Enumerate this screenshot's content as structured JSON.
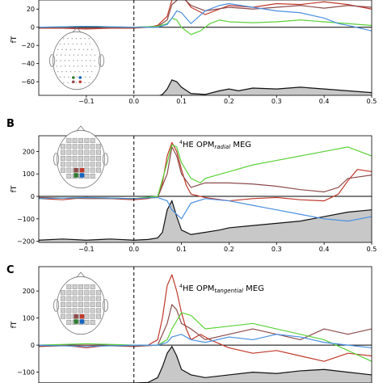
{
  "colors": {
    "red": "#c0392b",
    "brown": "#8e4b4b",
    "green": "#5cd13a",
    "blue": "#4a90e2",
    "black": "#111111",
    "fill": "#c8c8c8"
  },
  "panels": [
    {
      "label": "",
      "title_sup": "",
      "title_main": "",
      "title_sub": "",
      "title_end": "",
      "ylabel": "fT",
      "ylim": [
        -75,
        30
      ],
      "yticks": [
        -60,
        -40,
        -20,
        0,
        20
      ],
      "ytick_labels": [
        "−60",
        "−40",
        "−20",
        "0",
        "20"
      ],
      "xticks_labels": [
        "−0.1",
        "0.0",
        "0.1",
        "0.2",
        "0.3",
        "0.4",
        "0.5"
      ]
    },
    {
      "label": "B",
      "title_sup": "4",
      "title_main": "HE OPM",
      "title_sub": "radial",
      "title_end": " MEG",
      "ylabel": "fT",
      "ylim": [
        -205,
        270
      ],
      "yticks": [
        -200,
        -100,
        0,
        100,
        200
      ],
      "ytick_labels": [
        "−200",
        "−100",
        "0",
        "100",
        "200"
      ],
      "xticks_labels": [
        "−0.1",
        "0.0",
        "0.1",
        "0.2",
        "0.3",
        "0.4",
        "0.5"
      ]
    },
    {
      "label": "C",
      "title_sup": "4",
      "title_main": "HE OPM",
      "title_sub": "tangential",
      "title_end": " MEG",
      "ylabel": "fT",
      "ylim": [
        -140,
        290
      ],
      "yticks": [
        -100,
        0,
        100,
        200
      ],
      "ytick_labels": [
        "−100",
        "0",
        "100",
        "200"
      ],
      "xticks_labels": []
    }
  ],
  "chart_data": [
    {
      "type": "line",
      "xlim": [
        -0.2,
        0.5
      ],
      "xticks": [
        -0.1,
        0.0,
        0.1,
        0.2,
        0.3,
        0.4,
        0.5
      ],
      "ylim": [
        -75,
        30
      ],
      "grid": false,
      "vline_x": 0.0,
      "series": [
        {
          "color": "red",
          "x": [
            -0.2,
            -0.15,
            -0.1,
            -0.05,
            0.0,
            0.03,
            0.05,
            0.07,
            0.08,
            0.09,
            0.1,
            0.12,
            0.15,
            0.2,
            0.25,
            0.3,
            0.35,
            0.4,
            0.45,
            0.5
          ],
          "y": [
            -1,
            -1,
            -2,
            -1,
            -1,
            0,
            2,
            12,
            30,
            40,
            36,
            22,
            14,
            24,
            22,
            26,
            25,
            28,
            25,
            20
          ]
        },
        {
          "color": "brown",
          "x": [
            -0.2,
            -0.1,
            0.0,
            0.05,
            0.07,
            0.08,
            0.1,
            0.12,
            0.15,
            0.2,
            0.25,
            0.3,
            0.35,
            0.4,
            0.45,
            0.5
          ],
          "y": [
            0,
            -1,
            0,
            1,
            8,
            25,
            34,
            24,
            18,
            22,
            20,
            22,
            24,
            21,
            24,
            22
          ]
        },
        {
          "color": "green",
          "x": [
            -0.2,
            -0.1,
            0.0,
            0.05,
            0.07,
            0.08,
            0.09,
            0.1,
            0.12,
            0.14,
            0.16,
            0.18,
            0.2,
            0.25,
            0.3,
            0.35,
            0.4,
            0.45,
            0.5
          ],
          "y": [
            0,
            1,
            0,
            1,
            4,
            10,
            8,
            0,
            -8,
            -4,
            4,
            8,
            6,
            5,
            6,
            8,
            6,
            4,
            2
          ]
        },
        {
          "color": "blue",
          "x": [
            -0.2,
            -0.1,
            0.0,
            0.05,
            0.07,
            0.08,
            0.09,
            0.1,
            0.12,
            0.15,
            0.18,
            0.2,
            0.25,
            0.3,
            0.35,
            0.4,
            0.43,
            0.45,
            0.5
          ],
          "y": [
            0,
            1,
            0,
            0,
            3,
            10,
            18,
            16,
            4,
            18,
            24,
            26,
            22,
            18,
            16,
            10,
            4,
            2,
            -4
          ]
        }
      ],
      "area": {
        "color": "black",
        "x": [
          -0.2,
          -0.15,
          -0.1,
          -0.05,
          0.0,
          0.03,
          0.05,
          0.06,
          0.07,
          0.08,
          0.09,
          0.1,
          0.12,
          0.15,
          0.18,
          0.2,
          0.22,
          0.25,
          0.3,
          0.35,
          0.4,
          0.45,
          0.5
        ],
        "y": [
          -77,
          -76,
          -76,
          -77,
          -76,
          -76,
          -76,
          -74,
          -68,
          -58,
          -60,
          -66,
          -73,
          -74,
          -70,
          -68,
          -70,
          -67,
          -68,
          -66,
          -68,
          -70,
          -72
        ]
      }
    },
    {
      "type": "line",
      "xlim": [
        -0.2,
        0.5
      ],
      "xticks": [
        -0.1,
        0.0,
        0.1,
        0.2,
        0.3,
        0.4,
        0.5
      ],
      "ylim": [
        -205,
        270
      ],
      "grid": false,
      "vline_x": 0.0,
      "series": [
        {
          "color": "red",
          "x": [
            -0.2,
            -0.15,
            -0.1,
            -0.05,
            0.0,
            0.03,
            0.05,
            0.06,
            0.07,
            0.08,
            0.09,
            0.1,
            0.11,
            0.12,
            0.15,
            0.2,
            0.25,
            0.3,
            0.35,
            0.4,
            0.43,
            0.45,
            0.47,
            0.5
          ],
          "y": [
            -10,
            -15,
            -5,
            -10,
            -15,
            -10,
            0,
            60,
            180,
            240,
            200,
            120,
            50,
            10,
            -5,
            -20,
            -10,
            -5,
            -15,
            -20,
            10,
            70,
            120,
            110
          ]
        },
        {
          "color": "brown",
          "x": [
            -0.2,
            -0.1,
            0.0,
            0.05,
            0.07,
            0.08,
            0.09,
            0.1,
            0.12,
            0.15,
            0.2,
            0.25,
            0.3,
            0.35,
            0.4,
            0.43,
            0.45,
            0.5
          ],
          "y": [
            -5,
            -10,
            -10,
            -5,
            100,
            220,
            180,
            100,
            40,
            60,
            60,
            55,
            45,
            30,
            20,
            40,
            80,
            95
          ]
        },
        {
          "color": "green",
          "x": [
            -0.2,
            -0.1,
            0.0,
            0.05,
            0.07,
            0.08,
            0.09,
            0.1,
            0.12,
            0.14,
            0.15,
            0.2,
            0.25,
            0.3,
            0.35,
            0.4,
            0.45,
            0.5
          ],
          "y": [
            -10,
            -5,
            -10,
            0,
            150,
            230,
            220,
            150,
            80,
            60,
            80,
            110,
            140,
            160,
            180,
            200,
            220,
            180
          ]
        },
        {
          "color": "blue",
          "x": [
            -0.2,
            -0.1,
            0.0,
            0.05,
            0.07,
            0.08,
            0.1,
            0.12,
            0.15,
            0.2,
            0.25,
            0.3,
            0.35,
            0.4,
            0.45,
            0.5
          ],
          "y": [
            -10,
            -5,
            -10,
            -5,
            -20,
            -60,
            -100,
            -30,
            -10,
            -20,
            -40,
            -60,
            -80,
            -100,
            -110,
            -90
          ]
        }
      ],
      "area": {
        "color": "black",
        "x": [
          -0.2,
          -0.15,
          -0.1,
          -0.05,
          0.0,
          0.03,
          0.05,
          0.06,
          0.07,
          0.08,
          0.09,
          0.1,
          0.12,
          0.15,
          0.18,
          0.2,
          0.25,
          0.3,
          0.35,
          0.4,
          0.45,
          0.5
        ],
        "y": [
          -195,
          -190,
          -195,
          -190,
          -195,
          -192,
          -185,
          -160,
          -60,
          -20,
          -90,
          -150,
          -170,
          -160,
          -150,
          -140,
          -130,
          -120,
          -110,
          -90,
          -70,
          -60
        ]
      }
    },
    {
      "type": "line",
      "xlim": [
        -0.2,
        0.5
      ],
      "xticks": [],
      "ylim": [
        -140,
        290
      ],
      "grid": false,
      "vline_x": 0.0,
      "series": [
        {
          "color": "red",
          "x": [
            -0.2,
            -0.15,
            -0.1,
            -0.05,
            0.0,
            0.03,
            0.05,
            0.06,
            0.07,
            0.08,
            0.09,
            0.1,
            0.11,
            0.12,
            0.14,
            0.16,
            0.2,
            0.25,
            0.3,
            0.35,
            0.4,
            0.45,
            0.5
          ],
          "y": [
            -5,
            0,
            -10,
            0,
            -5,
            0,
            20,
            100,
            220,
            260,
            200,
            120,
            60,
            20,
            40,
            20,
            -10,
            -30,
            -20,
            -40,
            -60,
            -30,
            -40
          ]
        },
        {
          "color": "brown",
          "x": [
            -0.2,
            -0.1,
            0.0,
            0.05,
            0.07,
            0.08,
            0.09,
            0.1,
            0.12,
            0.15,
            0.2,
            0.25,
            0.3,
            0.35,
            0.4,
            0.45,
            0.5
          ],
          "y": [
            -5,
            0,
            -5,
            0,
            80,
            150,
            130,
            80,
            60,
            20,
            40,
            60,
            40,
            20,
            60,
            40,
            60
          ]
        },
        {
          "color": "green",
          "x": [
            -0.2,
            -0.1,
            0.0,
            0.05,
            0.07,
            0.08,
            0.1,
            0.12,
            0.15,
            0.2,
            0.25,
            0.3,
            0.35,
            0.4,
            0.45,
            0.5
          ],
          "y": [
            0,
            5,
            0,
            0,
            20,
            60,
            120,
            110,
            60,
            70,
            80,
            60,
            40,
            20,
            -20,
            -60
          ]
        },
        {
          "color": "blue",
          "x": [
            -0.2,
            -0.1,
            0.0,
            0.05,
            0.07,
            0.08,
            0.1,
            0.12,
            0.15,
            0.2,
            0.25,
            0.3,
            0.35,
            0.4,
            0.45,
            0.5
          ],
          "y": [
            0,
            -5,
            0,
            0,
            10,
            30,
            40,
            20,
            10,
            30,
            20,
            40,
            30,
            10,
            0,
            -10
          ]
        }
      ],
      "area": {
        "color": "black",
        "x": [
          -0.2,
          -0.15,
          -0.1,
          -0.05,
          0.0,
          0.03,
          0.05,
          0.06,
          0.07,
          0.08,
          0.09,
          0.1,
          0.12,
          0.15,
          0.2,
          0.25,
          0.3,
          0.35,
          0.4,
          0.45,
          0.5
        ],
        "y": [
          -140,
          -140,
          -140,
          -140,
          -140,
          -138,
          -120,
          -80,
          -30,
          -5,
          -40,
          -90,
          -110,
          -120,
          -110,
          -100,
          -105,
          -95,
          -90,
          -100,
          -110
        ]
      }
    }
  ]
}
